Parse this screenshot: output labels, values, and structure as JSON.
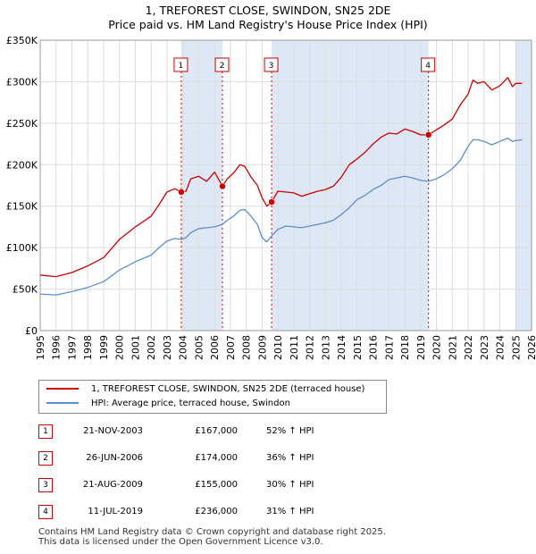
{
  "header": {
    "title_line1": "1, TREFOREST CLOSE, SWINDON, SN25 2DE",
    "title_line2": "Price paid vs. HM Land Registry's House Price Index (HPI)"
  },
  "colors": {
    "property": "#cc0000",
    "hpi": "#5b8ed1",
    "marker_line": "#cc0000",
    "shade": "#dde7f5",
    "grid": "#dddddd"
  },
  "chart_data": {
    "type": "line",
    "title": "Price paid vs. HM Land Registry's House Price Index (HPI)",
    "xlabel": "",
    "ylabel": "",
    "xlim": [
      1995,
      2026
    ],
    "ylim": [
      0,
      350000
    ],
    "x_ticks": [
      "1995",
      "1996",
      "1997",
      "1998",
      "1999",
      "2000",
      "2001",
      "2002",
      "2003",
      "2004",
      "2005",
      "2006",
      "2007",
      "2008",
      "2009",
      "2010",
      "2011",
      "2012",
      "2013",
      "2014",
      "2015",
      "2016",
      "2017",
      "2018",
      "2019",
      "2020",
      "2021",
      "2022",
      "2023",
      "2024",
      "2025",
      "2026"
    ],
    "y_ticks": [
      {
        "value": 0,
        "label": "£0"
      },
      {
        "value": 50000,
        "label": "£50K"
      },
      {
        "value": 100000,
        "label": "£100K"
      },
      {
        "value": 150000,
        "label": "£150K"
      },
      {
        "value": 200000,
        "label": "£200K"
      },
      {
        "value": 250000,
        "label": "£250K"
      },
      {
        "value": 300000,
        "label": "£300K"
      },
      {
        "value": 350000,
        "label": "£350K"
      }
    ],
    "grid": true,
    "shaded_ranges": [
      [
        2003.9,
        2006.5
      ],
      [
        2009.6,
        2019.5
      ],
      [
        2025.0,
        2026.0
      ]
    ],
    "series": [
      {
        "name": "1, TREFOREST CLOSE, SWINDON, SN25 2DE (terraced house)",
        "color": "#cc0000",
        "x": [
          1995.0,
          1996.0,
          1997.0,
          1998.0,
          1999.0,
          2000.0,
          2001.0,
          2002.0,
          2002.5,
          2003.0,
          2003.5,
          2003.9,
          2004.2,
          2004.5,
          2005.0,
          2005.5,
          2006.0,
          2006.5,
          2006.8,
          2007.2,
          2007.6,
          2007.9,
          2008.3,
          2008.7,
          2009.0,
          2009.3,
          2009.6,
          2010.0,
          2010.5,
          2011.0,
          2011.5,
          2012.0,
          2012.5,
          2013.0,
          2013.5,
          2014.0,
          2014.5,
          2015.0,
          2015.5,
          2016.0,
          2016.5,
          2017.0,
          2017.5,
          2018.0,
          2018.5,
          2019.0,
          2019.5,
          2020.0,
          2020.5,
          2021.0,
          2021.5,
          2022.0,
          2022.3,
          2022.6,
          2023.0,
          2023.5,
          2024.0,
          2024.5,
          2024.8,
          2025.0,
          2025.4
        ],
        "values": [
          67000,
          65000,
          70000,
          78000,
          88000,
          110000,
          125000,
          138000,
          152000,
          167000,
          171000,
          167000,
          168000,
          183000,
          186000,
          180000,
          191000,
          174000,
          183000,
          190000,
          200000,
          198000,
          185000,
          175000,
          160000,
          150000,
          155000,
          168000,
          167000,
          166000,
          162000,
          165000,
          168000,
          170000,
          174000,
          185000,
          200000,
          207000,
          215000,
          225000,
          233000,
          238000,
          237000,
          243000,
          240000,
          236000,
          236000,
          242000,
          248000,
          255000,
          272000,
          285000,
          302000,
          298000,
          300000,
          290000,
          295000,
          305000,
          294000,
          298000,
          298000
        ]
      },
      {
        "name": "HPI: Average price, terraced house, Swindon",
        "color": "#5b8ed1",
        "x": [
          1995.0,
          1996.0,
          1997.0,
          1998.0,
          1999.0,
          2000.0,
          2001.0,
          2002.0,
          2002.5,
          2003.0,
          2003.5,
          2003.9,
          2004.2,
          2004.5,
          2005.0,
          2005.5,
          2006.0,
          2006.5,
          2006.8,
          2007.2,
          2007.6,
          2007.9,
          2008.3,
          2008.7,
          2009.0,
          2009.3,
          2009.6,
          2010.0,
          2010.5,
          2011.0,
          2011.5,
          2012.0,
          2012.5,
          2013.0,
          2013.5,
          2014.0,
          2014.5,
          2015.0,
          2015.5,
          2016.0,
          2016.5,
          2017.0,
          2017.5,
          2018.0,
          2018.5,
          2019.0,
          2019.5,
          2020.0,
          2020.5,
          2021.0,
          2021.5,
          2022.0,
          2022.3,
          2022.6,
          2023.0,
          2023.5,
          2024.0,
          2024.5,
          2024.8,
          2025.0,
          2025.4
        ],
        "values": [
          44000,
          43000,
          47000,
          52000,
          59000,
          73000,
          83000,
          91000,
          100000,
          108000,
          111000,
          110000,
          112000,
          118000,
          123000,
          124000,
          125000,
          128000,
          133000,
          138000,
          145000,
          146000,
          138000,
          128000,
          112000,
          107000,
          114000,
          122000,
          126000,
          125000,
          124000,
          126000,
          128000,
          130000,
          133000,
          140000,
          148000,
          158000,
          163000,
          170000,
          175000,
          182000,
          184000,
          186000,
          184000,
          181000,
          180000,
          183000,
          188000,
          195000,
          205000,
          222000,
          230000,
          230000,
          228000,
          224000,
          228000,
          232000,
          228000,
          229000,
          230000
        ]
      }
    ],
    "sale_markers": [
      {
        "label": "1",
        "x": 2003.9,
        "value": 167000
      },
      {
        "label": "2",
        "x": 2006.5,
        "value": 174000
      },
      {
        "label": "3",
        "x": 2009.6,
        "value": 155000
      },
      {
        "label": "4",
        "x": 2019.5,
        "value": 236000
      }
    ]
  },
  "legend": {
    "property_label": "1, TREFOREST CLOSE, SWINDON, SN25 2DE (terraced house)",
    "hpi_label": "HPI: Average price, terraced house, Swindon"
  },
  "sales": [
    {
      "num": "1",
      "date": "21-NOV-2003",
      "price": "£167,000",
      "hpi": "52% ↑ HPI"
    },
    {
      "num": "2",
      "date": "26-JUN-2006",
      "price": "£174,000",
      "hpi": "36% ↑ HPI"
    },
    {
      "num": "3",
      "date": "21-AUG-2009",
      "price": "£155,000",
      "hpi": "30% ↑ HPI"
    },
    {
      "num": "4",
      "date": "11-JUL-2019",
      "price": "£236,000",
      "hpi": "31% ↑ HPI"
    }
  ],
  "footer": {
    "line1": "Contains HM Land Registry data © Crown copyright and database right 2025.",
    "line2": "This data is licensed under the Open Government Licence v3.0."
  }
}
